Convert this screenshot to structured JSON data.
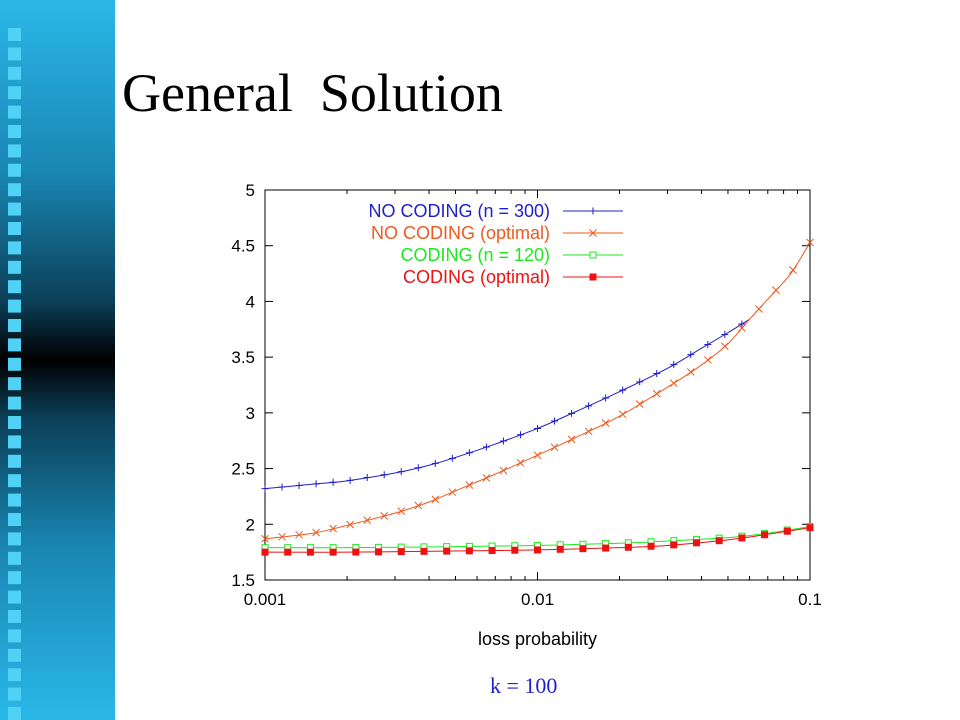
{
  "slide": {
    "title": "General  Solution",
    "caption": "k = 100"
  },
  "colors": {
    "sidebar_squares": "#4fd2f5",
    "frame": "#000000"
  },
  "chart_data": {
    "type": "line",
    "title": "",
    "xlabel": "loss probability",
    "ylabel": "",
    "xscale": "log",
    "xlim": [
      0.001,
      0.1
    ],
    "ylim": [
      1.5,
      5
    ],
    "xticks": [
      "0.001",
      "0.01",
      "0.1"
    ],
    "yticks": [
      "1.5",
      "2",
      "2.5",
      "3",
      "3.5",
      "4",
      "4.5",
      "5"
    ],
    "grid": false,
    "legend_position": "top-right",
    "series": [
      {
        "name": "NO CODING (n = 300)",
        "color": "#1f1fcc",
        "marker": "plus",
        "x": [
          0.001,
          0.0015,
          0.002,
          0.003,
          0.004,
          0.005,
          0.007,
          0.01,
          0.015,
          0.02,
          0.03,
          0.04,
          0.05,
          0.06
        ],
        "y": [
          2.32,
          2.36,
          2.39,
          2.46,
          2.53,
          2.6,
          2.72,
          2.86,
          3.05,
          3.19,
          3.4,
          3.58,
          3.72,
          3.84
        ]
      },
      {
        "name": "NO CODING (optimal)",
        "color": "#f05a1e",
        "marker": "x",
        "x": [
          0.001,
          0.0015,
          0.002,
          0.003,
          0.004,
          0.005,
          0.007,
          0.01,
          0.015,
          0.02,
          0.03,
          0.04,
          0.05,
          0.06,
          0.07,
          0.085,
          0.1
        ],
        "y": [
          1.87,
          1.92,
          1.99,
          2.1,
          2.2,
          2.3,
          2.45,
          2.62,
          2.82,
          2.97,
          3.23,
          3.43,
          3.62,
          3.84,
          4.02,
          4.25,
          4.53
        ]
      },
      {
        "name": "CODING (n = 120)",
        "color": "#1ee81e",
        "marker": "square-open",
        "x": [
          0.001,
          0.002,
          0.005,
          0.01,
          0.02,
          0.03,
          0.05,
          0.07,
          0.1
        ],
        "y": [
          1.79,
          1.79,
          1.8,
          1.81,
          1.83,
          1.85,
          1.88,
          1.92,
          1.98
        ]
      },
      {
        "name": "CODING (optimal)",
        "color": "#ee1111",
        "marker": "square-filled",
        "x": [
          0.001,
          0.002,
          0.005,
          0.01,
          0.02,
          0.03,
          0.05,
          0.07,
          0.1
        ],
        "y": [
          1.75,
          1.75,
          1.76,
          1.77,
          1.79,
          1.81,
          1.86,
          1.91,
          1.97
        ]
      }
    ]
  }
}
